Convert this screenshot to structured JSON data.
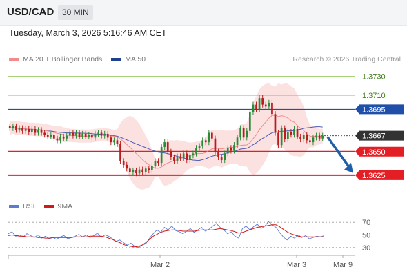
{
  "header": {
    "symbol": "USD/CAD",
    "timeframe": "30 MIN"
  },
  "datetime": "Tuesday, March 3, 2026 5:16:46 AM CET",
  "legend": {
    "ma20": "MA 20 + Bollinger Bands",
    "ma50": "MA 50"
  },
  "rsi_legend": {
    "rsi": "RSI",
    "ma9": "9MA"
  },
  "credit": "Research © 2026 Trading Central",
  "colors": {
    "candle_up": "#2a8a3a",
    "candle_down": "#b81c1c",
    "bollinger_fill": "#fbdcdc",
    "ma20": "#f28b8b",
    "ma50": "#4a5bb5",
    "resistance": "#8bc34a",
    "pivot": "#1f4fa8",
    "support": "#e31e24",
    "rsi": "#5b7bd5",
    "rsi_ma": "#d11a1a",
    "current_tag": "#333333"
  },
  "chart_data": [
    {
      "type": "candlestick",
      "title": "USD/CAD",
      "xlabel": "",
      "ylabel": "",
      "ylim": [
        1.3608,
        1.3743
      ],
      "x_tick_labels": [
        "Mar 2",
        "Mar 3",
        "Mar 9"
      ],
      "levels": [
        {
          "value": 1.373,
          "label": "1.3730",
          "kind": "resistance"
        },
        {
          "value": 1.371,
          "label": "1.3710",
          "kind": "resistance"
        },
        {
          "value": 1.3695,
          "label": "1.3695",
          "kind": "pivot"
        },
        {
          "value": 1.3667,
          "label": "1.3667",
          "kind": "current"
        },
        {
          "value": 1.365,
          "label": "1.3650",
          "kind": "support"
        },
        {
          "value": 1.3625,
          "label": "1.3625",
          "kind": "support"
        }
      ],
      "forecast_arrow": {
        "from": 1.3667,
        "to": 1.3625,
        "direction": "down"
      },
      "candles": [
        [
          1.3677,
          1.3675
        ],
        [
          1.3675,
          1.3677
        ],
        [
          1.3677,
          1.3673
        ],
        [
          1.3673,
          1.3675
        ],
        [
          1.3675,
          1.3672
        ],
        [
          1.3672,
          1.3674
        ],
        [
          1.3674,
          1.3671
        ],
        [
          1.3671,
          1.3674
        ],
        [
          1.3674,
          1.367
        ],
        [
          1.367,
          1.3673
        ],
        [
          1.3673,
          1.367
        ],
        [
          1.367,
          1.3668
        ],
        [
          1.3668,
          1.3666
        ],
        [
          1.3666,
          1.3668
        ],
        [
          1.3668,
          1.3664
        ],
        [
          1.3664,
          1.3662
        ],
        [
          1.3662,
          1.3666
        ],
        [
          1.3666,
          1.3664
        ],
        [
          1.3664,
          1.3667
        ],
        [
          1.3667,
          1.367
        ],
        [
          1.367,
          1.3667
        ],
        [
          1.3667,
          1.367
        ],
        [
          1.367,
          1.3666
        ],
        [
          1.3666,
          1.3669
        ],
        [
          1.3669,
          1.3666
        ],
        [
          1.3666,
          1.3668
        ],
        [
          1.3668,
          1.3665
        ],
        [
          1.3665,
          1.3669
        ],
        [
          1.3669,
          1.367
        ],
        [
          1.367,
          1.3667
        ],
        [
          1.3667,
          1.3669
        ],
        [
          1.3669,
          1.3665
        ],
        [
          1.3665,
          1.366
        ],
        [
          1.366,
          1.3662
        ],
        [
          1.3662,
          1.3658
        ],
        [
          1.3658,
          1.364
        ],
        [
          1.364,
          1.3636
        ],
        [
          1.3636,
          1.3632
        ],
        [
          1.3632,
          1.3628
        ],
        [
          1.3628,
          1.363
        ],
        [
          1.363,
          1.3627
        ],
        [
          1.3627,
          1.3631
        ],
        [
          1.3631,
          1.3628
        ],
        [
          1.3628,
          1.3632
        ],
        [
          1.3632,
          1.363
        ],
        [
          1.363,
          1.3635
        ],
        [
          1.3635,
          1.364
        ],
        [
          1.364,
          1.3638
        ],
        [
          1.3638,
          1.3655
        ],
        [
          1.3655,
          1.366
        ],
        [
          1.366,
          1.365
        ],
        [
          1.365,
          1.3644
        ],
        [
          1.3644,
          1.364
        ],
        [
          1.364,
          1.3645
        ],
        [
          1.3645,
          1.3643
        ],
        [
          1.3643,
          1.3648
        ],
        [
          1.3648,
          1.3641
        ],
        [
          1.3641,
          1.3646
        ],
        [
          1.3646,
          1.3648
        ],
        [
          1.3648,
          1.3654
        ],
        [
          1.3654,
          1.3656
        ],
        [
          1.3656,
          1.3662
        ],
        [
          1.3662,
          1.366
        ],
        [
          1.366,
          1.367
        ],
        [
          1.367,
          1.3664
        ],
        [
          1.3664,
          1.365
        ],
        [
          1.365,
          1.3644
        ],
        [
          1.3644,
          1.3641
        ],
        [
          1.3641,
          1.3648
        ],
        [
          1.3648,
          1.3654
        ],
        [
          1.3654,
          1.3651
        ],
        [
          1.3651,
          1.3657
        ],
        [
          1.3657,
          1.3665
        ],
        [
          1.3665,
          1.3675
        ],
        [
          1.3675,
          1.3665
        ],
        [
          1.3665,
          1.3672
        ],
        [
          1.3672,
          1.3692
        ],
        [
          1.3692,
          1.37
        ],
        [
          1.37,
          1.3695
        ],
        [
          1.3695,
          1.3707
        ],
        [
          1.3707,
          1.37
        ],
        [
          1.37,
          1.3698
        ],
        [
          1.3698,
          1.3702
        ],
        [
          1.3702,
          1.369
        ],
        [
          1.369,
          1.367
        ],
        [
          1.367,
          1.3657
        ],
        [
          1.3657,
          1.3675
        ],
        [
          1.3675,
          1.3663
        ],
        [
          1.3663,
          1.3671
        ],
        [
          1.3671,
          1.3668
        ],
        [
          1.3668,
          1.3674
        ],
        [
          1.3674,
          1.3666
        ],
        [
          1.3666,
          1.3663
        ],
        [
          1.3663,
          1.3668
        ],
        [
          1.3668,
          1.3662
        ],
        [
          1.3662,
          1.366
        ],
        [
          1.366,
          1.3665
        ],
        [
          1.3665,
          1.3667
        ],
        [
          1.3667,
          1.3664
        ],
        [
          1.3664,
          1.3667
        ]
      ]
    },
    {
      "type": "line",
      "title": "RSI",
      "ylim": [
        20,
        80
      ],
      "y_ticks": [
        70,
        50,
        30
      ],
      "series": [
        {
          "name": "RSI",
          "values": [
            52,
            55,
            48,
            50,
            47,
            52,
            49,
            46,
            50,
            45,
            48,
            44,
            46,
            43,
            47,
            49,
            44,
            46,
            48,
            51,
            47,
            50,
            46,
            49,
            53,
            46,
            50,
            48,
            44,
            40,
            42,
            38,
            34,
            37,
            32,
            30,
            34,
            36,
            45,
            52,
            58,
            54,
            62,
            58,
            64,
            57,
            55,
            52,
            56,
            60,
            54,
            58,
            62,
            56,
            59,
            64,
            68,
            62,
            58,
            52,
            55,
            48,
            45,
            60,
            64,
            58,
            63,
            67,
            60,
            64,
            71,
            66,
            62,
            54,
            47,
            42,
            48,
            45,
            50,
            46,
            49,
            44,
            46,
            48,
            47,
            49
          ]
        },
        {
          "name": "9MA",
          "values": [
            49,
            50,
            49,
            48,
            48,
            47,
            47,
            47,
            46,
            46,
            45,
            45,
            46,
            46,
            46,
            46,
            46,
            46,
            47,
            47,
            47,
            47,
            48,
            48,
            48,
            48,
            47,
            45,
            43,
            40,
            38,
            35,
            33,
            32,
            31,
            32,
            34,
            38,
            43,
            48,
            51,
            54,
            56,
            57,
            58,
            58,
            57,
            56,
            56,
            56,
            56,
            57,
            58,
            58,
            58,
            58,
            59,
            60,
            59,
            58,
            57,
            55,
            53,
            54,
            56,
            58,
            60,
            62,
            63,
            64,
            65,
            66,
            66,
            63,
            59,
            55,
            52,
            50,
            48,
            47,
            47,
            47,
            47,
            47,
            47,
            47
          ]
        }
      ]
    }
  ]
}
